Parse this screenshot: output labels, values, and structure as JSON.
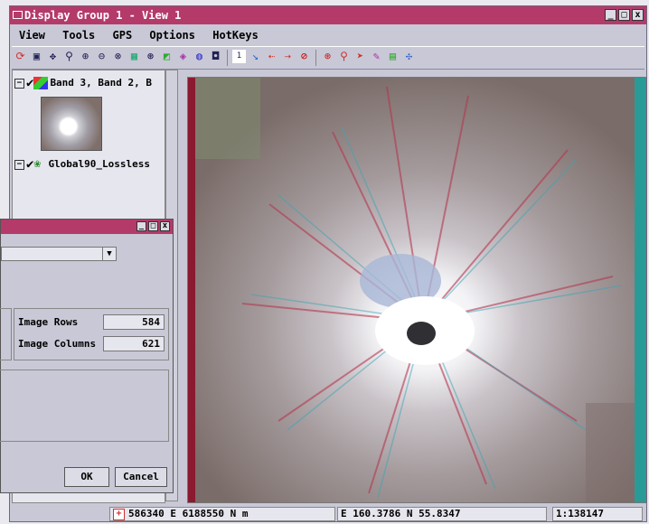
{
  "window": {
    "title": "Display Group 1 - View 1",
    "minimize": "_",
    "maximize": "□",
    "close": "x"
  },
  "menu": [
    "View",
    "Tools",
    "GPS",
    "Options",
    "HotKeys"
  ],
  "legend": {
    "layers": [
      {
        "name": "Band 3, Band 2, B"
      },
      {
        "name": "Global90_Lossless"
      }
    ]
  },
  "dialog": {
    "minimize": "_",
    "maximize": "□",
    "close": "x",
    "image_rows_label": "Image Rows",
    "image_rows": "584",
    "image_columns_label": "Image Columns",
    "image_columns": "621",
    "ok": "OK",
    "cancel": "Cancel"
  },
  "status": {
    "projected": "586340 E   6188550 N m",
    "geographic": "E 160.3786  N 55.8347",
    "scale": "1:138147"
  },
  "colors": {
    "title_bar": "#b43a6a",
    "chrome": "#c8c8d6"
  }
}
